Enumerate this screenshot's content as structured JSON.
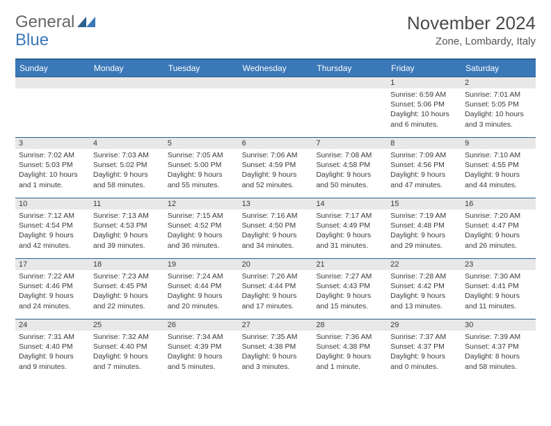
{
  "logo": {
    "general": "General",
    "blue": "Blue"
  },
  "title": "November 2024",
  "subtitle": "Zone, Lombardy, Italy",
  "header_color": "#3b78b8",
  "border_color": "#2b5f8c",
  "day_strip_color": "#e8e8e8",
  "font_family": "Arial",
  "days_of_week": [
    "Sunday",
    "Monday",
    "Tuesday",
    "Wednesday",
    "Thursday",
    "Friday",
    "Saturday"
  ],
  "weeks": [
    [
      null,
      null,
      null,
      null,
      null,
      {
        "num": "1",
        "sunrise": "Sunrise: 6:59 AM",
        "sunset": "Sunset: 5:06 PM",
        "daylight": "Daylight: 10 hours and 6 minutes."
      },
      {
        "num": "2",
        "sunrise": "Sunrise: 7:01 AM",
        "sunset": "Sunset: 5:05 PM",
        "daylight": "Daylight: 10 hours and 3 minutes."
      }
    ],
    [
      {
        "num": "3",
        "sunrise": "Sunrise: 7:02 AM",
        "sunset": "Sunset: 5:03 PM",
        "daylight": "Daylight: 10 hours and 1 minute."
      },
      {
        "num": "4",
        "sunrise": "Sunrise: 7:03 AM",
        "sunset": "Sunset: 5:02 PM",
        "daylight": "Daylight: 9 hours and 58 minutes."
      },
      {
        "num": "5",
        "sunrise": "Sunrise: 7:05 AM",
        "sunset": "Sunset: 5:00 PM",
        "daylight": "Daylight: 9 hours and 55 minutes."
      },
      {
        "num": "6",
        "sunrise": "Sunrise: 7:06 AM",
        "sunset": "Sunset: 4:59 PM",
        "daylight": "Daylight: 9 hours and 52 minutes."
      },
      {
        "num": "7",
        "sunrise": "Sunrise: 7:08 AM",
        "sunset": "Sunset: 4:58 PM",
        "daylight": "Daylight: 9 hours and 50 minutes."
      },
      {
        "num": "8",
        "sunrise": "Sunrise: 7:09 AM",
        "sunset": "Sunset: 4:56 PM",
        "daylight": "Daylight: 9 hours and 47 minutes."
      },
      {
        "num": "9",
        "sunrise": "Sunrise: 7:10 AM",
        "sunset": "Sunset: 4:55 PM",
        "daylight": "Daylight: 9 hours and 44 minutes."
      }
    ],
    [
      {
        "num": "10",
        "sunrise": "Sunrise: 7:12 AM",
        "sunset": "Sunset: 4:54 PM",
        "daylight": "Daylight: 9 hours and 42 minutes."
      },
      {
        "num": "11",
        "sunrise": "Sunrise: 7:13 AM",
        "sunset": "Sunset: 4:53 PM",
        "daylight": "Daylight: 9 hours and 39 minutes."
      },
      {
        "num": "12",
        "sunrise": "Sunrise: 7:15 AM",
        "sunset": "Sunset: 4:52 PM",
        "daylight": "Daylight: 9 hours and 36 minutes."
      },
      {
        "num": "13",
        "sunrise": "Sunrise: 7:16 AM",
        "sunset": "Sunset: 4:50 PM",
        "daylight": "Daylight: 9 hours and 34 minutes."
      },
      {
        "num": "14",
        "sunrise": "Sunrise: 7:17 AM",
        "sunset": "Sunset: 4:49 PM",
        "daylight": "Daylight: 9 hours and 31 minutes."
      },
      {
        "num": "15",
        "sunrise": "Sunrise: 7:19 AM",
        "sunset": "Sunset: 4:48 PM",
        "daylight": "Daylight: 9 hours and 29 minutes."
      },
      {
        "num": "16",
        "sunrise": "Sunrise: 7:20 AM",
        "sunset": "Sunset: 4:47 PM",
        "daylight": "Daylight: 9 hours and 26 minutes."
      }
    ],
    [
      {
        "num": "17",
        "sunrise": "Sunrise: 7:22 AM",
        "sunset": "Sunset: 4:46 PM",
        "daylight": "Daylight: 9 hours and 24 minutes."
      },
      {
        "num": "18",
        "sunrise": "Sunrise: 7:23 AM",
        "sunset": "Sunset: 4:45 PM",
        "daylight": "Daylight: 9 hours and 22 minutes."
      },
      {
        "num": "19",
        "sunrise": "Sunrise: 7:24 AM",
        "sunset": "Sunset: 4:44 PM",
        "daylight": "Daylight: 9 hours and 20 minutes."
      },
      {
        "num": "20",
        "sunrise": "Sunrise: 7:26 AM",
        "sunset": "Sunset: 4:44 PM",
        "daylight": "Daylight: 9 hours and 17 minutes."
      },
      {
        "num": "21",
        "sunrise": "Sunrise: 7:27 AM",
        "sunset": "Sunset: 4:43 PM",
        "daylight": "Daylight: 9 hours and 15 minutes."
      },
      {
        "num": "22",
        "sunrise": "Sunrise: 7:28 AM",
        "sunset": "Sunset: 4:42 PM",
        "daylight": "Daylight: 9 hours and 13 minutes."
      },
      {
        "num": "23",
        "sunrise": "Sunrise: 7:30 AM",
        "sunset": "Sunset: 4:41 PM",
        "daylight": "Daylight: 9 hours and 11 minutes."
      }
    ],
    [
      {
        "num": "24",
        "sunrise": "Sunrise: 7:31 AM",
        "sunset": "Sunset: 4:40 PM",
        "daylight": "Daylight: 9 hours and 9 minutes."
      },
      {
        "num": "25",
        "sunrise": "Sunrise: 7:32 AM",
        "sunset": "Sunset: 4:40 PM",
        "daylight": "Daylight: 9 hours and 7 minutes."
      },
      {
        "num": "26",
        "sunrise": "Sunrise: 7:34 AM",
        "sunset": "Sunset: 4:39 PM",
        "daylight": "Daylight: 9 hours and 5 minutes."
      },
      {
        "num": "27",
        "sunrise": "Sunrise: 7:35 AM",
        "sunset": "Sunset: 4:38 PM",
        "daylight": "Daylight: 9 hours and 3 minutes."
      },
      {
        "num": "28",
        "sunrise": "Sunrise: 7:36 AM",
        "sunset": "Sunset: 4:38 PM",
        "daylight": "Daylight: 9 hours and 1 minute."
      },
      {
        "num": "29",
        "sunrise": "Sunrise: 7:37 AM",
        "sunset": "Sunset: 4:37 PM",
        "daylight": "Daylight: 9 hours and 0 minutes."
      },
      {
        "num": "30",
        "sunrise": "Sunrise: 7:39 AM",
        "sunset": "Sunset: 4:37 PM",
        "daylight": "Daylight: 8 hours and 58 minutes."
      }
    ]
  ]
}
